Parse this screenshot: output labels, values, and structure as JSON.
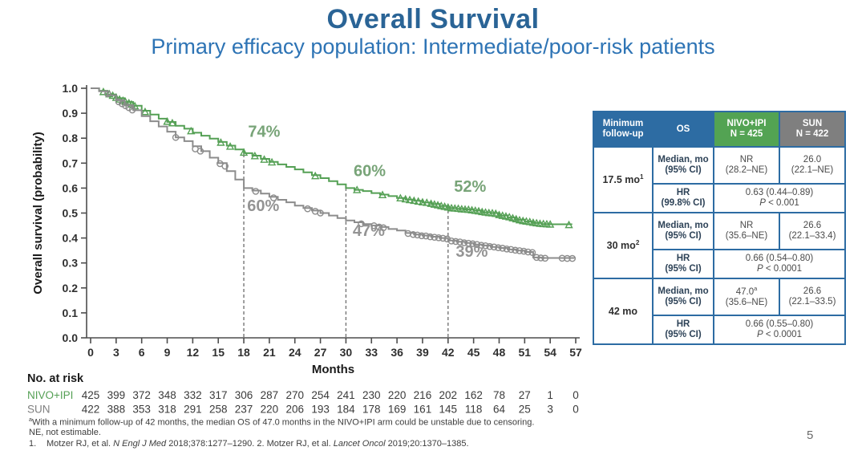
{
  "slide": {
    "title": "Overall Survival",
    "subtitle": "Primary efficacy population: Intermediate/poor-risk patients",
    "page_number": "5"
  },
  "colors": {
    "title_blue": "#2a6496",
    "subtitle_blue": "#2e74b5",
    "nivo_green": "#55a055",
    "sun_gray": "#8c8c8c",
    "annotation_green": "#78a478",
    "annotation_gray": "#949494",
    "table_blue": "#2d6ca3",
    "header_green": "#53a353",
    "header_gray": "#7f7f7f",
    "axis_text": "#2f2f2f"
  },
  "chart_data": {
    "type": "line",
    "subtype": "kaplan-meier-step",
    "xlabel": "Months",
    "ylabel": "Overall survival (probability)",
    "xlim": [
      0,
      57
    ],
    "xticks": [
      0,
      3,
      6,
      9,
      12,
      15,
      18,
      21,
      24,
      27,
      30,
      33,
      36,
      39,
      42,
      45,
      48,
      51,
      54,
      57
    ],
    "ylim": [
      0.0,
      1.0
    ],
    "ytick_step": 0.1,
    "grid": false,
    "dashed_reference_months": [
      18,
      30,
      42
    ],
    "series": [
      {
        "name": "NIVO+IPI",
        "color": "#55a055",
        "marker": "triangle",
        "steps": [
          [
            0,
            1.0
          ],
          [
            1,
            0.99
          ],
          [
            2,
            0.975
          ],
          [
            3,
            0.96
          ],
          [
            4,
            0.945
          ],
          [
            5,
            0.93
          ],
          [
            6,
            0.91
          ],
          [
            7,
            0.895
          ],
          [
            8,
            0.878
          ],
          [
            9,
            0.865
          ],
          [
            10,
            0.85
          ],
          [
            11,
            0.838
          ],
          [
            12,
            0.822
          ],
          [
            13,
            0.81
          ],
          [
            14,
            0.798
          ],
          [
            15,
            0.785
          ],
          [
            16,
            0.77
          ],
          [
            17,
            0.755
          ],
          [
            18,
            0.74
          ],
          [
            19,
            0.73
          ],
          [
            20,
            0.717
          ],
          [
            21,
            0.705
          ],
          [
            22,
            0.695
          ],
          [
            23,
            0.685
          ],
          [
            24,
            0.675
          ],
          [
            25,
            0.663
          ],
          [
            26,
            0.652
          ],
          [
            27,
            0.64
          ],
          [
            28,
            0.628
          ],
          [
            29,
            0.615
          ],
          [
            30,
            0.6
          ],
          [
            31,
            0.593
          ],
          [
            32,
            0.588
          ],
          [
            33,
            0.58
          ],
          [
            34,
            0.574
          ],
          [
            35,
            0.568
          ],
          [
            36,
            0.56
          ],
          [
            37,
            0.554
          ],
          [
            38,
            0.549
          ],
          [
            39,
            0.542
          ],
          [
            40,
            0.536
          ],
          [
            41,
            0.528
          ],
          [
            42,
            0.52
          ],
          [
            43,
            0.517
          ],
          [
            44,
            0.514
          ],
          [
            45,
            0.51
          ],
          [
            46,
            0.503
          ],
          [
            47,
            0.5
          ],
          [
            48,
            0.49
          ],
          [
            49,
            0.482
          ],
          [
            50,
            0.473
          ],
          [
            51,
            0.466
          ],
          [
            52,
            0.46
          ],
          [
            53,
            0.456
          ],
          [
            54,
            0.455
          ],
          [
            56.5,
            0.452
          ]
        ],
        "censor_marks": [
          [
            1.5,
            0.985
          ],
          [
            2.2,
            0.976
          ],
          [
            2.6,
            0.97
          ],
          [
            3.0,
            0.962
          ],
          [
            3.4,
            0.955
          ],
          [
            3.8,
            0.95
          ],
          [
            4.1,
            0.945
          ],
          [
            4.5,
            0.94
          ],
          [
            4.8,
            0.935
          ],
          [
            5.2,
            0.928
          ],
          [
            6.4,
            0.905
          ],
          [
            9.0,
            0.866
          ],
          [
            9.6,
            0.86
          ],
          [
            11.8,
            0.828
          ],
          [
            15.3,
            0.782
          ],
          [
            16.4,
            0.766
          ],
          [
            18.0,
            0.742
          ],
          [
            19.3,
            0.728
          ],
          [
            20.4,
            0.714
          ],
          [
            21.3,
            0.703
          ],
          [
            26.4,
            0.648
          ],
          [
            31.3,
            0.592
          ],
          [
            34.3,
            0.572
          ],
          [
            36.4,
            0.559
          ],
          [
            37.0,
            0.555
          ],
          [
            37.5,
            0.552
          ],
          [
            38.0,
            0.549
          ],
          [
            38.5,
            0.546
          ],
          [
            39.0,
            0.543
          ],
          [
            39.5,
            0.541
          ],
          [
            40.0,
            0.537
          ],
          [
            40.4,
            0.534
          ],
          [
            40.8,
            0.531
          ],
          [
            41.2,
            0.528
          ],
          [
            41.6,
            0.525
          ],
          [
            42.0,
            0.522
          ],
          [
            42.4,
            0.519
          ],
          [
            42.8,
            0.518
          ],
          [
            43.2,
            0.517
          ],
          [
            43.6,
            0.515
          ],
          [
            44.0,
            0.514
          ],
          [
            44.4,
            0.513
          ],
          [
            44.8,
            0.511
          ],
          [
            45.2,
            0.509
          ],
          [
            45.6,
            0.507
          ],
          [
            46.0,
            0.504
          ],
          [
            46.4,
            0.502
          ],
          [
            46.8,
            0.5
          ],
          [
            47.2,
            0.499
          ],
          [
            47.6,
            0.497
          ],
          [
            48.0,
            0.492
          ],
          [
            48.4,
            0.489
          ],
          [
            48.8,
            0.486
          ],
          [
            49.2,
            0.483
          ],
          [
            49.6,
            0.479
          ],
          [
            50.0,
            0.475
          ],
          [
            50.4,
            0.471
          ],
          [
            50.8,
            0.468
          ],
          [
            51.2,
            0.466
          ],
          [
            51.6,
            0.464
          ],
          [
            52.0,
            0.461
          ],
          [
            52.4,
            0.459
          ],
          [
            52.8,
            0.457
          ],
          [
            53.2,
            0.456
          ],
          [
            53.6,
            0.455
          ],
          [
            54.0,
            0.454
          ],
          [
            56.2,
            0.452
          ]
        ]
      },
      {
        "name": "SUN",
        "color": "#8c8c8c",
        "marker": "circle",
        "steps": [
          [
            0,
            1.0
          ],
          [
            1,
            0.988
          ],
          [
            2,
            0.972
          ],
          [
            3,
            0.952
          ],
          [
            4,
            0.932
          ],
          [
            5,
            0.912
          ],
          [
            6,
            0.888
          ],
          [
            7,
            0.868
          ],
          [
            8,
            0.847
          ],
          [
            9,
            0.826
          ],
          [
            10,
            0.803
          ],
          [
            11,
            0.788
          ],
          [
            12,
            0.768
          ],
          [
            13,
            0.748
          ],
          [
            14,
            0.722
          ],
          [
            15,
            0.7
          ],
          [
            16,
            0.668
          ],
          [
            17,
            0.634
          ],
          [
            18,
            0.6
          ],
          [
            19,
            0.59
          ],
          [
            20,
            0.578
          ],
          [
            21,
            0.565
          ],
          [
            22,
            0.553
          ],
          [
            23,
            0.543
          ],
          [
            24,
            0.53
          ],
          [
            25,
            0.52
          ],
          [
            26,
            0.51
          ],
          [
            27,
            0.5
          ],
          [
            28,
            0.49
          ],
          [
            29,
            0.48
          ],
          [
            30,
            0.47
          ],
          [
            31,
            0.463
          ],
          [
            32,
            0.456
          ],
          [
            33,
            0.45
          ],
          [
            34,
            0.444
          ],
          [
            35,
            0.436
          ],
          [
            36,
            0.43
          ],
          [
            37,
            0.42
          ],
          [
            38,
            0.414
          ],
          [
            39,
            0.41
          ],
          [
            40,
            0.405
          ],
          [
            41,
            0.4
          ],
          [
            42,
            0.39
          ],
          [
            43,
            0.385
          ],
          [
            44,
            0.38
          ],
          [
            45,
            0.374
          ],
          [
            46,
            0.37
          ],
          [
            47,
            0.364
          ],
          [
            48,
            0.36
          ],
          [
            49,
            0.354
          ],
          [
            50,
            0.35
          ],
          [
            51,
            0.344
          ],
          [
            52,
            0.322
          ],
          [
            53,
            0.32
          ],
          [
            56.8,
            0.318
          ]
        ],
        "censor_marks": [
          [
            2.0,
            0.978
          ],
          [
            3.3,
            0.946
          ],
          [
            3.7,
            0.938
          ],
          [
            4.1,
            0.93
          ],
          [
            4.5,
            0.922
          ],
          [
            4.9,
            0.913
          ],
          [
            10.0,
            0.803
          ],
          [
            12.3,
            0.757
          ],
          [
            12.9,
            0.748
          ],
          [
            15.2,
            0.698
          ],
          [
            15.8,
            0.688
          ],
          [
            19.4,
            0.587
          ],
          [
            21.5,
            0.561
          ],
          [
            25.5,
            0.517
          ],
          [
            26.4,
            0.507
          ],
          [
            27.0,
            0.5
          ],
          [
            31.8,
            0.457
          ],
          [
            33.3,
            0.449
          ],
          [
            33.9,
            0.444
          ],
          [
            34.4,
            0.441
          ],
          [
            37.3,
            0.418
          ],
          [
            37.9,
            0.414
          ],
          [
            38.4,
            0.412
          ],
          [
            38.9,
            0.409
          ],
          [
            39.4,
            0.408
          ],
          [
            39.9,
            0.405
          ],
          [
            40.4,
            0.403
          ],
          [
            40.9,
            0.401
          ],
          [
            41.4,
            0.399
          ],
          [
            41.9,
            0.396
          ],
          [
            42.4,
            0.388
          ],
          [
            42.9,
            0.386
          ],
          [
            43.4,
            0.384
          ],
          [
            43.9,
            0.381
          ],
          [
            44.4,
            0.379
          ],
          [
            44.9,
            0.377
          ],
          [
            45.4,
            0.374
          ],
          [
            45.9,
            0.371
          ],
          [
            46.4,
            0.369
          ],
          [
            46.9,
            0.366
          ],
          [
            47.4,
            0.364
          ],
          [
            47.9,
            0.361
          ],
          [
            48.4,
            0.359
          ],
          [
            48.9,
            0.356
          ],
          [
            49.4,
            0.354
          ],
          [
            49.9,
            0.351
          ],
          [
            50.4,
            0.349
          ],
          [
            50.9,
            0.347
          ],
          [
            51.4,
            0.344
          ],
          [
            51.9,
            0.342
          ],
          [
            52.4,
            0.322
          ],
          [
            52.9,
            0.32
          ],
          [
            53.4,
            0.319
          ],
          [
            55.4,
            0.319
          ],
          [
            56.0,
            0.318
          ],
          [
            56.6,
            0.318
          ]
        ]
      }
    ],
    "annotations": [
      {
        "label": "74%",
        "series": "NIVO+IPI",
        "month": 18.5,
        "surv": 0.805
      },
      {
        "label": "60%",
        "series": "SUN",
        "month": 18.4,
        "surv": 0.508
      },
      {
        "label": "60%",
        "series": "NIVO+IPI",
        "month": 30.9,
        "surv": 0.648
      },
      {
        "label": "47%",
        "series": "SUN",
        "month": 30.8,
        "surv": 0.408
      },
      {
        "label": "52%",
        "series": "NIVO+IPI",
        "month": 42.7,
        "surv": 0.585
      },
      {
        "label": "39%",
        "series": "SUN",
        "month": 42.9,
        "surv": 0.325
      }
    ]
  },
  "risk_table": {
    "title": "No. at risk",
    "months": [
      0,
      3,
      6,
      9,
      12,
      15,
      18,
      21,
      24,
      27,
      30,
      33,
      36,
      39,
      42,
      45,
      48,
      51,
      54,
      57
    ],
    "rows": [
      {
        "name": "NIVO+IPI",
        "color": "#55a055",
        "values": [
          425,
          399,
          372,
          348,
          332,
          317,
          306,
          287,
          270,
          254,
          241,
          230,
          220,
          216,
          202,
          162,
          78,
          27,
          1,
          0
        ]
      },
      {
        "name": "SUN",
        "color": "#7f7f7f",
        "values": [
          422,
          388,
          353,
          318,
          291,
          258,
          237,
          220,
          206,
          193,
          184,
          178,
          169,
          161,
          145,
          118,
          64,
          25,
          3,
          0
        ]
      }
    ]
  },
  "results_table": {
    "headers": [
      {
        "text": "Minimum follow-up",
        "sub": "",
        "class": "th-blue"
      },
      {
        "text": "OS",
        "sub": "",
        "class": "th-blue"
      },
      {
        "text": "NIVO+IPI",
        "sub": "N = 425",
        "class": "th-green"
      },
      {
        "text": "SUN",
        "sub": "N = 422",
        "class": "th-gray"
      }
    ],
    "groups": [
      {
        "label": "17.5 mo",
        "label_sup": "1",
        "median": {
          "label_l1": "Median, mo",
          "label_l2": "(95% CI)",
          "nivo_l1": "NR",
          "nivo_sup": "",
          "nivo_l2": "(28.2–NE)",
          "sun_l1": "26.0",
          "sun_l2": "(22.1–NE)"
        },
        "hr": {
          "label_l1": "HR",
          "label_l2": "(99.8% CI)",
          "value": "0.63 (0.44–0.89)",
          "p": "P < 0.001"
        }
      },
      {
        "label": "30 mo",
        "label_sup": "2",
        "median": {
          "label_l1": "Median, mo",
          "label_l2": "(95% CI)",
          "nivo_l1": "NR",
          "nivo_sup": "",
          "nivo_l2": "(35.6–NE)",
          "sun_l1": "26.6",
          "sun_l2": "(22.1–33.4)"
        },
        "hr": {
          "label_l1": "HR",
          "label_l2": "(95% CI)",
          "value": "0.66 (0.54–0.80)",
          "p": "P < 0.0001"
        }
      },
      {
        "label": "42 mo",
        "label_sup": "",
        "median": {
          "label_l1": "Median, mo",
          "label_l2": "(95% CI)",
          "nivo_l1": "47.0",
          "nivo_sup": "a",
          "nivo_l2": "(35.6–NE)",
          "sun_l1": "26.6",
          "sun_l2": "(22.1–33.5)"
        },
        "hr": {
          "label_l1": "HR",
          "label_l2": "(95% CI)",
          "value": "0.66 (0.55–0.80)",
          "p": "P < 0.0001"
        }
      }
    ]
  },
  "footnotes": {
    "fn1_sup": "a",
    "fn1": "With a minimum follow-up of 42 months, the median OS of 47.0 months in the NIVO+IPI arm could be unstable due to censoring.",
    "fn2": "NE, not estimable.",
    "ref_num": "1.",
    "ref_parts": [
      {
        "t": "Motzer RJ, et al. ",
        "i": false
      },
      {
        "t": "N Engl J Med",
        "i": true
      },
      {
        "t": " 2018;378:1277–1290. 2. Motzer RJ, et al. ",
        "i": false
      },
      {
        "t": "Lancet Oncol",
        "i": true
      },
      {
        "t": " 2019;20:1370–1385.",
        "i": false
      }
    ]
  }
}
